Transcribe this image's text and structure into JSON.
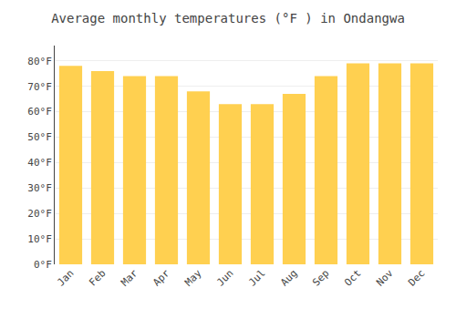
{
  "chart_data": {
    "type": "bar",
    "title": "Average monthly temperatures (°F ) in Ondangwa",
    "categories": [
      "Jan",
      "Feb",
      "Mar",
      "Apr",
      "May",
      "Jun",
      "Jul",
      "Aug",
      "Sep",
      "Oct",
      "Nov",
      "Dec"
    ],
    "values": [
      78,
      76,
      74,
      74,
      68,
      63,
      63,
      67,
      74,
      79,
      79,
      79
    ],
    "color": "#FFD050",
    "ylim": [
      0,
      86
    ],
    "yticks": [
      {
        "value": 0,
        "label": "0°F"
      },
      {
        "value": 10,
        "label": "10°F"
      },
      {
        "value": 20,
        "label": "20°F"
      },
      {
        "value": 30,
        "label": "30°F"
      },
      {
        "value": 40,
        "label": "40°F"
      },
      {
        "value": 50,
        "label": "50°F"
      },
      {
        "value": 60,
        "label": "60°F"
      },
      {
        "value": 70,
        "label": "70°F"
      },
      {
        "value": 80,
        "label": "80°F"
      }
    ],
    "grid": true
  }
}
